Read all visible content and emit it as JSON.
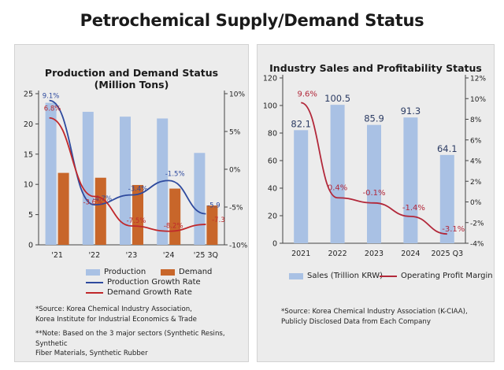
{
  "title": "Petrochemical Supply/Demand Status",
  "chart_data": [
    {
      "type": "bar",
      "title": "Production and Demand Status",
      "subtitle": "(Million Tons)",
      "categories": [
        "'21",
        "'22",
        "'23",
        "'24",
        "'25 3Q"
      ],
      "ylim": [
        0,
        25
      ],
      "y_ticks": [
        0,
        5,
        10,
        15,
        20,
        25
      ],
      "y2lim": [
        -10,
        10
      ],
      "y2_ticks": [
        "-10%",
        "-5%",
        "0%",
        "5%",
        "10%"
      ],
      "series": [
        {
          "name": "Production",
          "type": "bar",
          "axis": "left",
          "color": "#a9c1e4",
          "values": [
            23.5,
            22.0,
            21.2,
            20.9,
            15.2
          ]
        },
        {
          "name": "Demand",
          "type": "bar",
          "axis": "left",
          "color": "#c8662a",
          "values": [
            11.9,
            11.1,
            9.9,
            9.3,
            6.5
          ]
        },
        {
          "name": "Production Growth Rate",
          "type": "line",
          "axis": "right",
          "color": "#2e4a9e",
          "values": [
            9.1,
            -4.7,
            -3.4,
            -1.5,
            -5.9
          ],
          "labels": [
            "9.1%",
            "-4.7%",
            "-3.4%",
            "-1.5%",
            "-5.9"
          ]
        },
        {
          "name": "Demand Growth Rate",
          "type": "line",
          "axis": "right",
          "color": "#c0282b",
          "values": [
            6.8,
            -3.6,
            -7.5,
            -8.2,
            -7.3
          ],
          "labels": [
            "6.8%",
            "-3.6%",
            "-7.5%",
            "-8.2%",
            "-7.3"
          ]
        }
      ],
      "legend": [
        "Production",
        "Demand",
        "Production Growth Rate",
        "Demand Growth Rate"
      ]
    },
    {
      "type": "bar",
      "title": "Industry Sales and Profitability Status",
      "categories": [
        "2021",
        "2022",
        "2023",
        "2024",
        "2025 Q3"
      ],
      "ylim": [
        0,
        120
      ],
      "y_ticks": [
        0,
        20,
        40,
        60,
        80,
        100,
        120
      ],
      "y2lim": [
        -4,
        12
      ],
      "y2_ticks": [
        "-4%",
        "-2%",
        "0%",
        "2%",
        "4%",
        "6%",
        "8%",
        "10%",
        "12%"
      ],
      "series": [
        {
          "name": "Sales (Trillion KRW)",
          "type": "bar",
          "axis": "left",
          "color": "#a9c1e4",
          "values": [
            82.1,
            100.5,
            85.9,
            91.3,
            64.1
          ],
          "labels": [
            "82.1",
            "100.5",
            "85.9",
            "91.3",
            "64.1"
          ]
        },
        {
          "name": "Operating Profit Margin",
          "type": "line",
          "axis": "right",
          "color": "#b2283a",
          "values": [
            9.6,
            0.4,
            -0.1,
            -1.4,
            -3.1
          ],
          "labels": [
            "9.6%",
            "0.4%",
            "-0.1%",
            "-1.4%",
            "-3.1%"
          ]
        }
      ],
      "legend": [
        "Sales (Trillion KRW)",
        "Operating Profit Margin"
      ]
    }
  ],
  "notes_left": {
    "source_1": "*Source: Korea Chemical Industry Association,",
    "source_2": "Korea Institute for Industrial Economics & Trade",
    "note_1": "**Note: Based on the 3 major sectors (Synthetic Resins, Synthetic",
    "note_2": "Fiber Materials, Synthetic Rubber"
  },
  "notes_right": {
    "source_1": "*Source: Korea Chemical Industry Association (K-CIAA),",
    "source_2": "Publicly Disclosed Data from Each Company"
  }
}
